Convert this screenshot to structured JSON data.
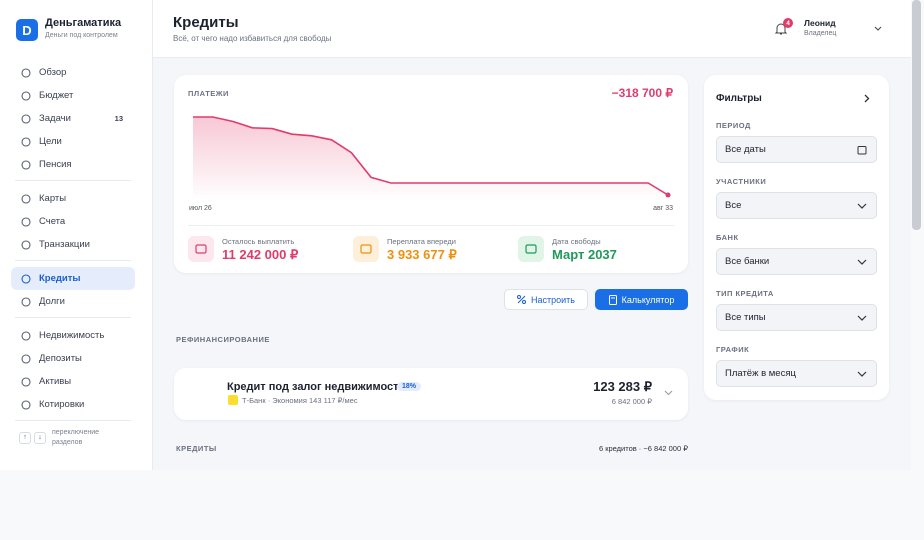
{
  "brand": {
    "logo": "D",
    "name": "Деньгаматика",
    "tagline": "Деньги под контролем"
  },
  "nav": {
    "groups": [
      [
        {
          "label": "Обзор"
        },
        {
          "label": "Бюджет"
        },
        {
          "label": "Задачи",
          "badge": "13"
        },
        {
          "label": "Цели"
        },
        {
          "label": "Пенсия"
        }
      ],
      [
        {
          "label": "Карты"
        },
        {
          "label": "Счета"
        },
        {
          "label": "Транзакции"
        }
      ],
      [
        {
          "label": "Кредиты",
          "active": true
        },
        {
          "label": "Долги"
        }
      ],
      [
        {
          "label": "Недвижимость"
        },
        {
          "label": "Депозиты"
        },
        {
          "label": "Активы"
        },
        {
          "label": "Котировки"
        }
      ]
    ],
    "hint": "переключение разделов"
  },
  "header": {
    "title": "Кредиты",
    "subtitle": "Всё, от чего надо избавиться для свободы",
    "notifications": "4",
    "user": {
      "name": "Леонид",
      "role": "Владелец"
    }
  },
  "payments": {
    "title": "ПЛАТЕЖИ",
    "total": "−318 700 ₽",
    "chart": {
      "type": "area",
      "color": "#e23b6b",
      "ylim": [
        0,
        100
      ],
      "categories": [
        "июл 26",
        null,
        null,
        null,
        null,
        null,
        null,
        null,
        null,
        null,
        null,
        null,
        null,
        null,
        null,
        null,
        null,
        null,
        null,
        null,
        null,
        null,
        null,
        null,
        "авг 33"
      ],
      "values": [
        97.5,
        97.5,
        92,
        84,
        83,
        76,
        74,
        69,
        53,
        22,
        15,
        15,
        15,
        15,
        15,
        15,
        15,
        15,
        15,
        15,
        15,
        15,
        15,
        15,
        0
      ]
    },
    "stats": [
      {
        "label": "Осталось выплатить",
        "value": "11 242 000 ₽"
      },
      {
        "label": "Переплата впереди",
        "value": "3 933 677 ₽"
      },
      {
        "label": "Дата свободы",
        "value": "Март 2037"
      }
    ]
  },
  "actions": {
    "configure": "Настроить",
    "calculator": "Калькулятор"
  },
  "refinancing": {
    "heading": "РЕФИНАНСИРОВАНИЕ",
    "item": {
      "title": "Кредит под залог недвижимости",
      "rate": "18%",
      "bank": "Т-Банк",
      "savings": "Экономия 143 117 ₽/мес",
      "payment": "123 283 ₽",
      "amount": "6 842 000 ₽"
    }
  },
  "credits": {
    "heading": "КРЕДИТЫ",
    "summary": "6 кредитов · −6 842 000 ₽"
  },
  "filters": {
    "title": "Фильтры",
    "fields": [
      {
        "label": "ПЕРИОД",
        "value": "Все даты"
      },
      {
        "label": "УЧАСТНИКИ",
        "value": "Все"
      },
      {
        "label": "БАНК",
        "value": "Все банки"
      },
      {
        "label": "ТИП КРЕДИТА",
        "value": "Все типы"
      },
      {
        "label": "ГРАФИК",
        "value": "Платёж в месяц"
      }
    ]
  }
}
